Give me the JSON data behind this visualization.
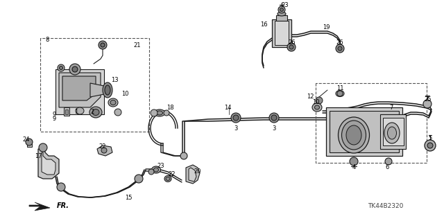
{
  "bg_color": "#ffffff",
  "line_color": "#1a1a1a",
  "dash_color": "#555555",
  "fig_width": 6.4,
  "fig_height": 3.19,
  "dpi": 100,
  "part_code": "TK44B2320",
  "fr_label": "FR."
}
